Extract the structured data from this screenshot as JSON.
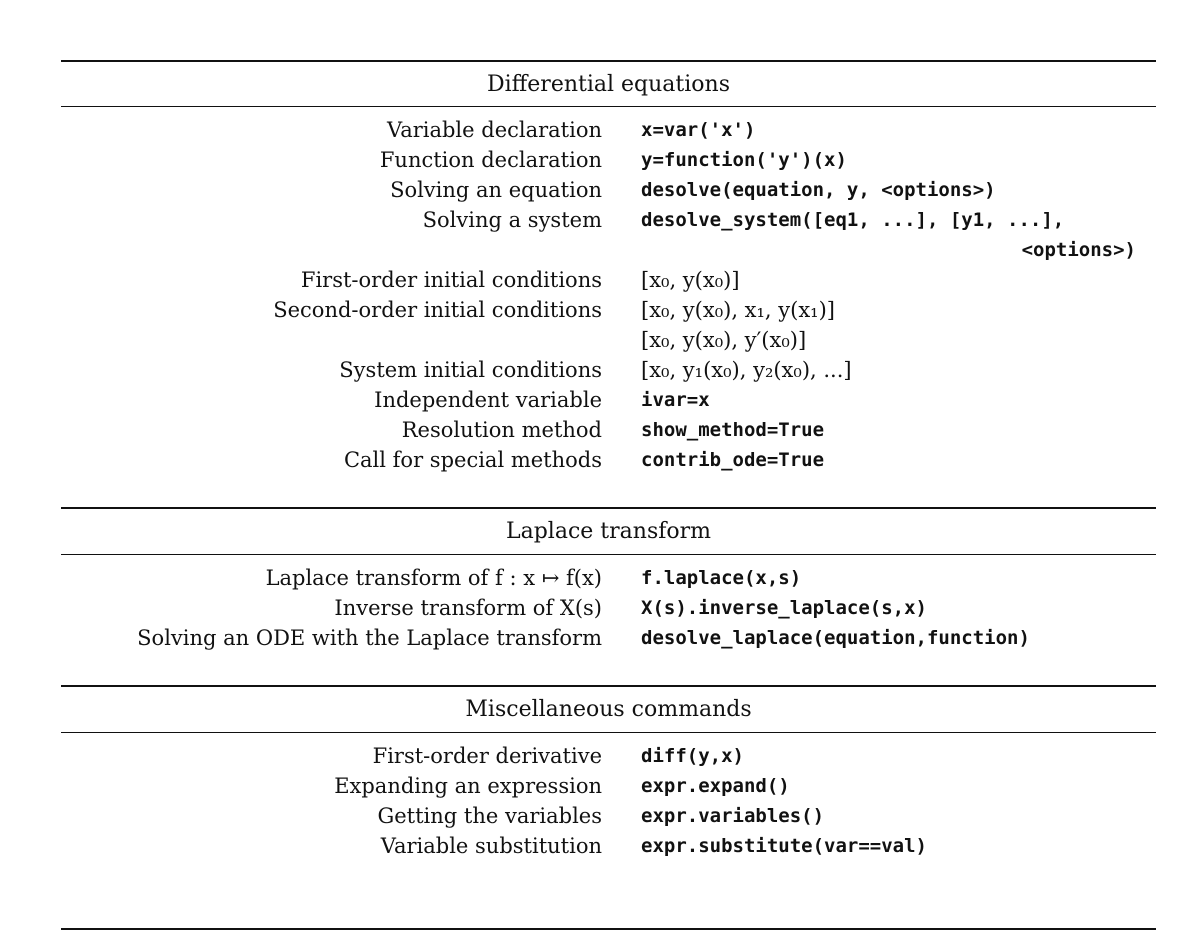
{
  "sections": [
    {
      "title": "Differential equations",
      "rows": [
        {
          "label": "Variable declaration",
          "value": "x=var('x')"
        },
        {
          "label": "Function declaration",
          "value": "y=function('y')(x)"
        },
        {
          "label": "Solving an equation",
          "value": "desolve(equation, y, <options>)"
        },
        {
          "label": "Solving a system",
          "value": "desolve_system([eq1, ...], [y1, ...],",
          "continuation": "<options>)"
        },
        {
          "label": "First-order initial conditions",
          "value": "[x₀, y(x₀)]"
        },
        {
          "label": "Second-order initial conditions",
          "value": "[x₀, y(x₀), x₁, y(x₁)]",
          "continuation": "[x₀, y(x₀), y′(x₀)]"
        },
        {
          "label": "System initial conditions",
          "value": "[x₀, y₁(x₀), y₂(x₀), ...]"
        },
        {
          "label": "Independent variable",
          "value": "ivar=x"
        },
        {
          "label": "Resolution method",
          "value": "show_method=True"
        },
        {
          "label": "Call for special methods",
          "value": "contrib_ode=True"
        }
      ]
    },
    {
      "title": "Laplace transform",
      "rows": [
        {
          "label": "Laplace transform of f : x ↦ f(x)",
          "value": "f.laplace(x,s)"
        },
        {
          "label": "Inverse transform of X(s)",
          "value": "X(s).inverse_laplace(s,x)"
        },
        {
          "label": "Solving an ODE with the Laplace transform",
          "value": "desolve_laplace(equation,function)"
        }
      ]
    },
    {
      "title": "Miscellaneous commands",
      "rows": [
        {
          "label": "First-order derivative",
          "value": "diff(y,x)"
        },
        {
          "label": "Expanding an expression",
          "value": "expr.expand()"
        },
        {
          "label": "Getting the variables",
          "value": "expr.variables()"
        },
        {
          "label": "Variable substitution",
          "value": "expr.substitute(var==val)"
        }
      ]
    }
  ]
}
